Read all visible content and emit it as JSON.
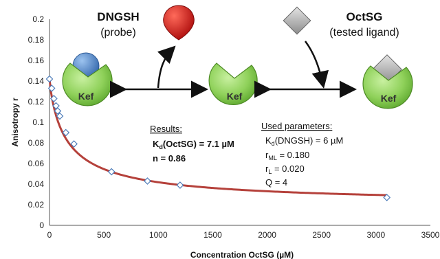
{
  "chart_data": {
    "type": "scatter",
    "xlabel": "Concentration OctSG (µM)",
    "ylabel": "Anisotropy r",
    "xlim": [
      0,
      3500
    ],
    "ylim": [
      0,
      0.2
    ],
    "x_ticks": [
      "0",
      "500",
      "1000",
      "1500",
      "2000",
      "2500",
      "3000",
      "3500"
    ],
    "y_ticks": [
      "0",
      "0.02",
      "0.04",
      "0.06",
      "0.08",
      "0.1",
      "0.12",
      "0.14",
      "0.16",
      "0.18",
      "0.2"
    ],
    "grid": false,
    "series": [
      {
        "kind": "points",
        "marker": "diamond",
        "color": "#4a7ab8",
        "points": [
          {
            "x": 0,
            "y": 0.142
          },
          {
            "x": 20,
            "y": 0.133
          },
          {
            "x": 40,
            "y": 0.123
          },
          {
            "x": 60,
            "y": 0.116
          },
          {
            "x": 75,
            "y": 0.111
          },
          {
            "x": 95,
            "y": 0.106
          },
          {
            "x": 150,
            "y": 0.09
          },
          {
            "x": 225,
            "y": 0.079
          },
          {
            "x": 570,
            "y": 0.052
          },
          {
            "x": 900,
            "y": 0.043
          },
          {
            "x": 1200,
            "y": 0.039
          },
          {
            "x": 3100,
            "y": 0.027
          }
        ]
      },
      {
        "kind": "fit",
        "color": "#b5413b",
        "params": {
          "Kd_probe": 6,
          "Kd_ligand": 7.1,
          "n": 0.86,
          "rML": 0.18,
          "rL": 0.02,
          "Q": 4,
          "rMax_obs": 0.142
        }
      }
    ]
  },
  "results": {
    "heading": "Results:",
    "kd_label": "K",
    "kd_sub": "d",
    "kd_value": "(OctSG) = 7.1 µM",
    "n_line": "n = 0.86"
  },
  "params": {
    "heading": "Used parameters:",
    "kd_label": "K",
    "kd_sub": "d",
    "kd_value": "(DNGSH) = 6 µM",
    "rml_label": "r",
    "rml_sub": "ML",
    "rml_value": " = 0.180",
    "rl_label": "r",
    "rl_sub": "L",
    "rl_value": " = 0.020",
    "q_line": "Q = 4"
  },
  "diagram": {
    "probe_name": "DNGSH",
    "probe_sub": "(probe)",
    "ligand_name": "OctSG",
    "ligand_sub": "(tested ligand)",
    "protein_label": "Kef",
    "colors": {
      "protein": "#8fd15a",
      "probe": "#4f83c8",
      "probe_free": "#d31b1b",
      "ligand": "#a5a5a5"
    }
  }
}
